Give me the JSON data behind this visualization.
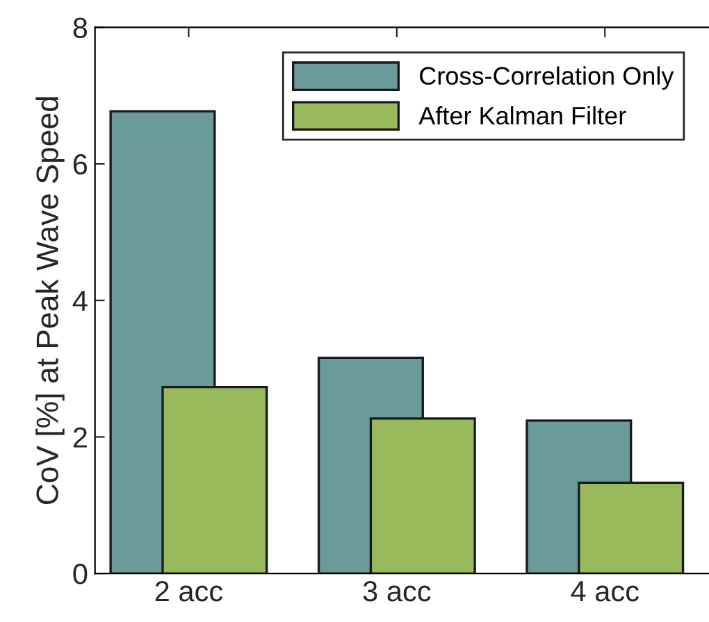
{
  "chart_data": {
    "type": "bar",
    "ylabel": "CoV [%] at Peak Wave Speed",
    "categories": [
      "2 acc",
      "3 acc",
      "4 acc"
    ],
    "series": [
      {
        "name": "Cross-Correlation Only",
        "color": "#6a9a99",
        "values": [
          6.77,
          3.16,
          2.24
        ]
      },
      {
        "name": "After Kalman Filter",
        "color": "#98b95c",
        "values": [
          2.73,
          2.27,
          1.33
        ]
      }
    ],
    "ylim": [
      0,
      8
    ],
    "yticks": [
      0,
      2,
      4,
      6,
      8
    ],
    "legend": "top right",
    "grid": false
  }
}
